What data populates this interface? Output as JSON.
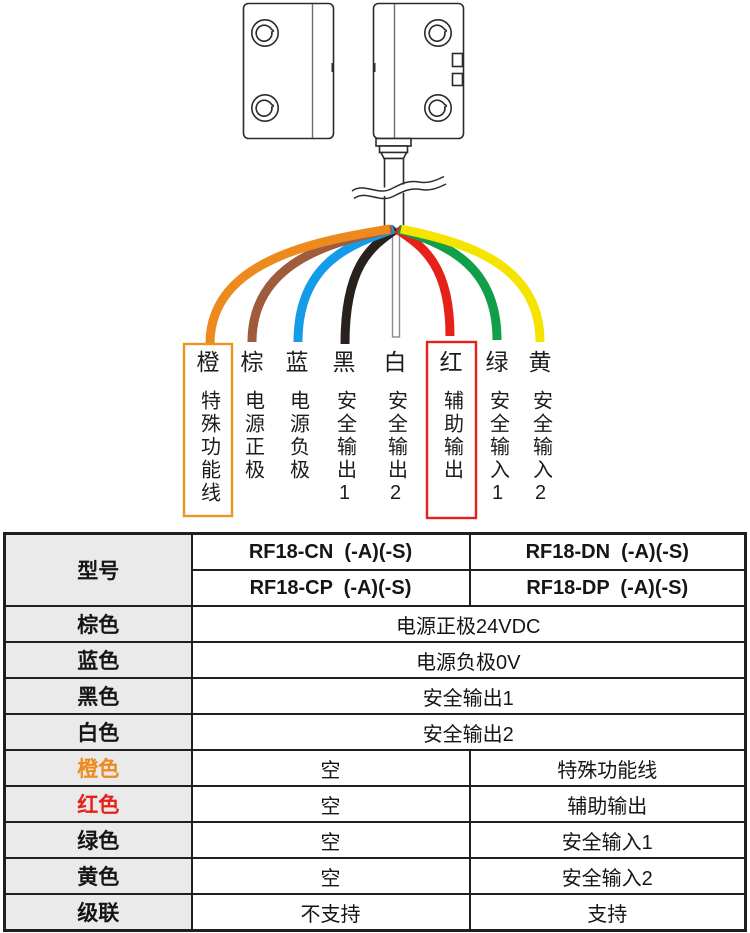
{
  "diagram": {
    "wires": [
      {
        "name": "orange",
        "color": "#ED8A1E",
        "label": "橙",
        "function": "特殊功能线",
        "highlight_box_color": "#F0931E"
      },
      {
        "name": "brown",
        "color": "#A05A3C",
        "label": "棕",
        "function": "电源正极"
      },
      {
        "name": "blue",
        "color": "#149CE8",
        "label": "蓝",
        "function": "电源负极"
      },
      {
        "name": "black",
        "color": "#29211E",
        "label": "黑",
        "function": "安全输出1"
      },
      {
        "name": "white",
        "color": "#FFFFFF",
        "outline": "#8C8C8C",
        "label": "白",
        "function": "安全输出2"
      },
      {
        "name": "red",
        "color": "#E62119",
        "label": "红",
        "function": "辅助输出",
        "highlight_box_color": "#E62119"
      },
      {
        "name": "green",
        "color": "#119E48",
        "label": "绿",
        "function": "安全输入1"
      },
      {
        "name": "yellow",
        "color": "#F5E400",
        "label": "黄",
        "function": "安全输入2"
      }
    ]
  },
  "table": {
    "header": {
      "row_label": "型号",
      "model_rows": [
        {
          "c1": "RF18-CN  (-A)(-S)",
          "c2": "RF18-DN  (-A)(-S)"
        },
        {
          "c1": "RF18-CP  (-A)(-S)",
          "c2": "RF18-DP  (-A)(-S)"
        }
      ]
    },
    "rows": [
      {
        "label": "棕色",
        "value": "电源正极24VDC"
      },
      {
        "label": "蓝色",
        "value": "电源负极0V"
      },
      {
        "label": "黑色",
        "value": "安全输出1"
      },
      {
        "label": "白色",
        "value": "安全输出2"
      },
      {
        "label": "橙色",
        "label_color": "#ED8A1E",
        "c1": "空",
        "c2": "特殊功能线"
      },
      {
        "label": "红色",
        "label_color": "#E62119",
        "c1": "空",
        "c2": "辅助输出"
      },
      {
        "label": "绿色",
        "c1": "空",
        "c2": "安全输入1"
      },
      {
        "label": "黄色",
        "c1": "空",
        "c2": "安全输入2"
      },
      {
        "label": "级联",
        "c1": "不支持",
        "c2": "支持"
      }
    ]
  }
}
